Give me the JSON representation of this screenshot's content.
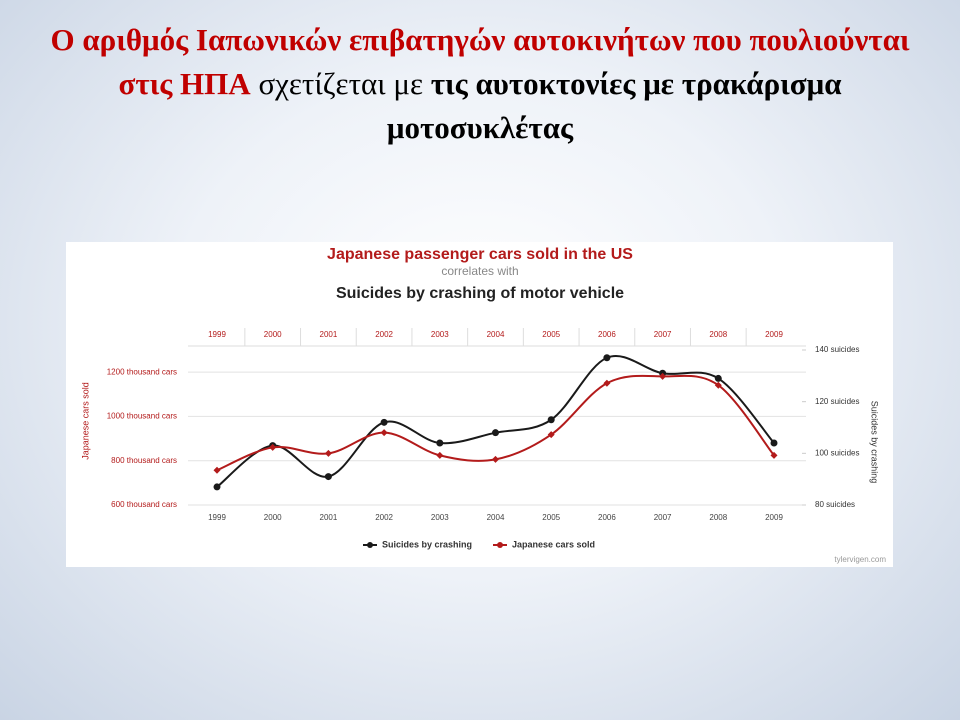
{
  "slide": {
    "title_runs": [
      "Ο αριθμός Ιαπωνικών επιβατηγών αυτοκινήτων που πουλιούνται στις ΗΠΑ",
      " σχετίζεται με ",
      "τις αυτοκτονίες με τρακάρισμα μοτοσυκλέτας"
    ]
  },
  "chart_data": {
    "type": "line",
    "title": "Japanese passenger cars sold in the US",
    "subtitle": "correlates with",
    "title2": "Suicides by crashing of motor vehicle",
    "ylabel": "Japanese cars sold",
    "y2label": "Suicides by crashing",
    "credit": "tylervigen.com",
    "categories": [
      "1999",
      "2000",
      "2001",
      "2002",
      "2003",
      "2004",
      "2005",
      "2006",
      "2007",
      "2008",
      "2009"
    ],
    "series": [
      {
        "name": "Suicides by crashing",
        "color": "#1a1a1a",
        "axis": "y2",
        "values": [
          87,
          103,
          91,
          112,
          104,
          108,
          113,
          137,
          131,
          129,
          104
        ]
      },
      {
        "name": "Japanese cars sold",
        "color": "#b31b1b",
        "values": [
          757,
          860,
          833,
          927,
          824,
          806,
          918,
          1150,
          1181,
          1141,
          824
        ]
      }
    ],
    "ylim": [
      600,
      1300
    ],
    "yticks": [
      {
        "value": 600,
        "label": "600 thousand cars"
      },
      {
        "value": 800,
        "label": "800 thousand cars"
      },
      {
        "value": 1000,
        "label": "1000 thousand cars"
      },
      {
        "value": 1200,
        "label": "1200 thousand cars"
      }
    ],
    "y2lim": [
      80,
      140
    ],
    "y2ticks": [
      {
        "value": 80,
        "label": "80 suicides"
      },
      {
        "value": 100,
        "label": "100 suicides"
      },
      {
        "value": 120,
        "label": "120 suicides"
      },
      {
        "value": 140,
        "label": "140 suicides"
      }
    ],
    "grid": true
  }
}
